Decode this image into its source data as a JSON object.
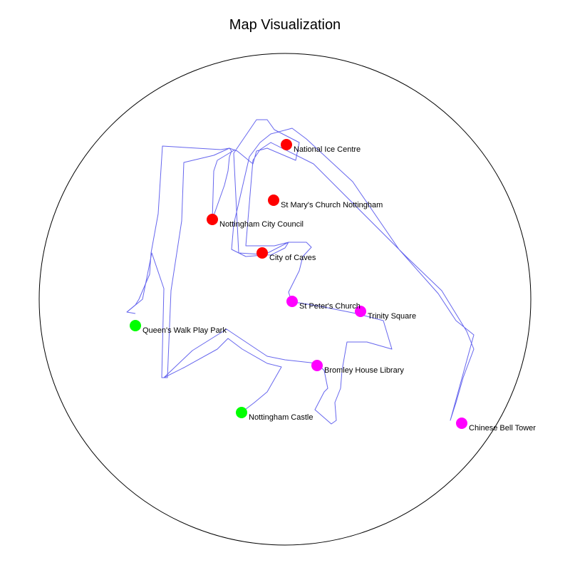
{
  "title": "Map Visualization",
  "colors": {
    "background": "#ffffff",
    "boundary": "#000000",
    "route": "#6666ee",
    "category_red": "#ff0000",
    "category_magenta": "#ff00ff",
    "category_green": "#00ff00"
  },
  "places": [
    {
      "name": "National Ice Centre",
      "color": "#ff0000"
    },
    {
      "name": "St Mary's Church Nottingham",
      "color": "#ff0000"
    },
    {
      "name": "Nottingham City Council",
      "color": "#ff0000"
    },
    {
      "name": "City of Caves",
      "color": "#ff0000"
    },
    {
      "name": "St Peter's Church",
      "color": "#ff00ff"
    },
    {
      "name": "Trinity Square",
      "color": "#ff00ff"
    },
    {
      "name": "Queen's Walk Play Park",
      "color": "#00ff00"
    },
    {
      "name": "Bromley House Library",
      "color": "#ff00ff"
    },
    {
      "name": "Nottingham Castle",
      "color": "#00ff00"
    },
    {
      "name": "Chinese Bell Tower",
      "color": "#ff00ff"
    }
  ]
}
